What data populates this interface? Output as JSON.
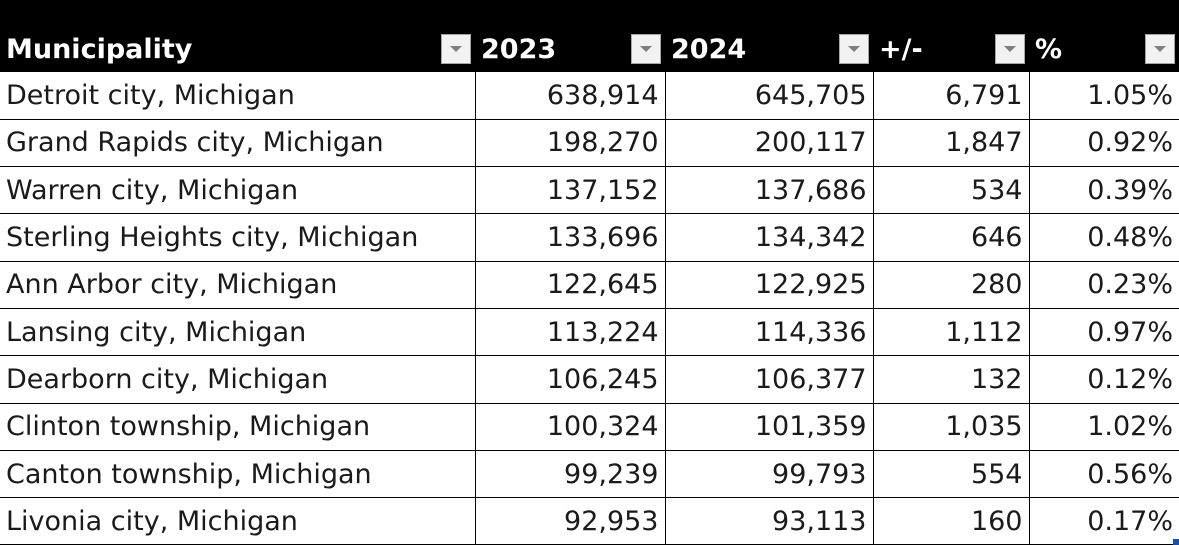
{
  "table": {
    "headers": [
      {
        "label": "Municipality"
      },
      {
        "label": "2023"
      },
      {
        "label": "2024"
      },
      {
        "label": "+/-"
      },
      {
        "label": "%"
      }
    ],
    "rows": [
      {
        "name": "Detroit city, Michigan",
        "y2023": "638,914",
        "y2024": "645,705",
        "change": "6,791",
        "pct": "1.05%"
      },
      {
        "name": "Grand Rapids city, Michigan",
        "y2023": "198,270",
        "y2024": "200,117",
        "change": "1,847",
        "pct": "0.92%"
      },
      {
        "name": "Warren city, Michigan",
        "y2023": "137,152",
        "y2024": "137,686",
        "change": "534",
        "pct": "0.39%"
      },
      {
        "name": "Sterling Heights city, Michigan",
        "y2023": "133,696",
        "y2024": "134,342",
        "change": "646",
        "pct": "0.48%"
      },
      {
        "name": "Ann Arbor city, Michigan",
        "y2023": "122,645",
        "y2024": "122,925",
        "change": "280",
        "pct": "0.23%"
      },
      {
        "name": "Lansing city, Michigan",
        "y2023": "113,224",
        "y2024": "114,336",
        "change": "1,112",
        "pct": "0.97%"
      },
      {
        "name": "Dearborn city, Michigan",
        "y2023": "106,245",
        "y2024": "106,377",
        "change": "132",
        "pct": "0.12%"
      },
      {
        "name": "Clinton township, Michigan",
        "y2023": "100,324",
        "y2024": "101,359",
        "change": "1,035",
        "pct": "1.02%"
      },
      {
        "name": "Canton township, Michigan",
        "y2023": "99,239",
        "y2024": "99,793",
        "change": "554",
        "pct": "0.56%"
      },
      {
        "name": "Livonia city, Michigan",
        "y2023": "92,953",
        "y2024": "93,113",
        "change": "160",
        "pct": "0.17%"
      }
    ]
  },
  "icons": {
    "filter": "filter-dropdown-icon"
  },
  "colors": {
    "header_bg": "#000000",
    "header_text": "#ffffff",
    "grid_line": "#000000",
    "selection_handle": "#1f4e9c"
  }
}
